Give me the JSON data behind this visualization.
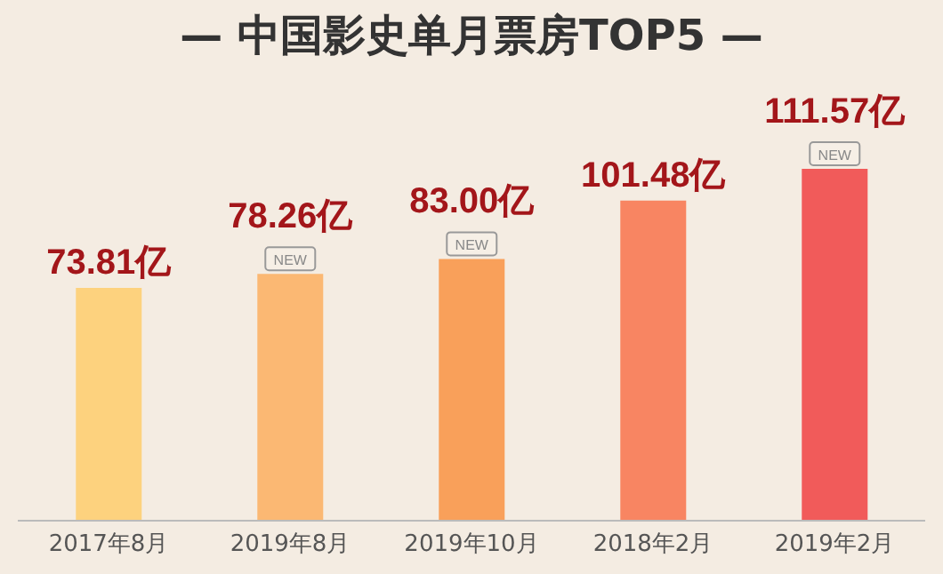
{
  "chart_data": {
    "type": "bar",
    "title": "— 中国影史单月票房TOP5 —",
    "categories": [
      "2017年8月",
      "2019年8月",
      "2019年10月",
      "2018年2月",
      "2019年2月"
    ],
    "values": [
      73.81,
      78.26,
      83.0,
      101.48,
      111.57
    ],
    "colors": [
      "#fdd27e",
      "#fbb873",
      "#f9a05a",
      "#f88562",
      "#f15b5a"
    ],
    "value_labels": [
      "73.81亿",
      "78.26亿",
      "83.00亿",
      "101.48亿",
      "111.57亿"
    ],
    "annotations": [
      {
        "text": "NEW",
        "x": "2019年8月",
        "y": 78.26
      },
      {
        "text": "NEW",
        "x": "2019年10月",
        "y": 83.0
      },
      {
        "text": "NEW",
        "x": "2019年2月",
        "y": 111.57
      }
    ],
    "grid": false,
    "legend": false
  }
}
